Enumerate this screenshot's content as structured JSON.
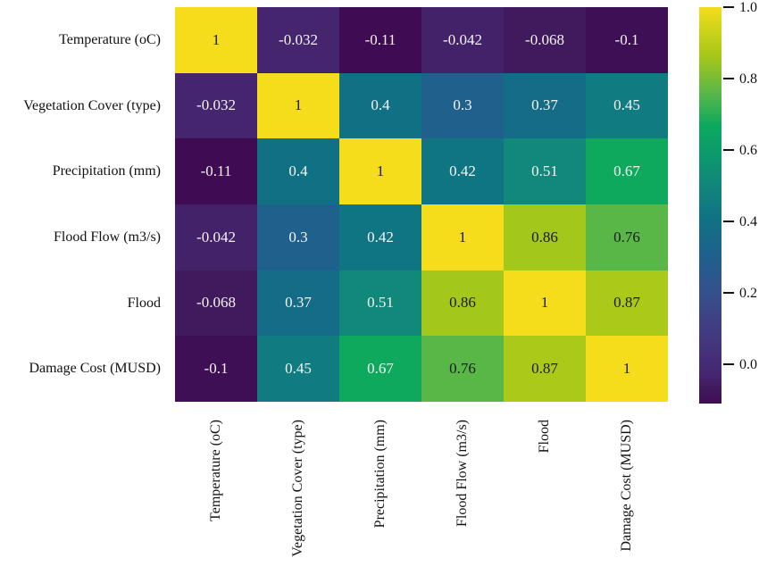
{
  "chart_data": {
    "type": "heatmap",
    "title": "",
    "variables": [
      "Temperature (oC)",
      "Vegetation Cover (type)",
      "Precipitation (mm)",
      "Flood Flow (m3/s)",
      "Flood",
      "Damage Cost (MUSD)"
    ],
    "matrix": [
      [
        1,
        -0.032,
        -0.11,
        -0.042,
        -0.068,
        -0.1
      ],
      [
        -0.032,
        1,
        0.4,
        0.3,
        0.37,
        0.45
      ],
      [
        -0.11,
        0.4,
        1,
        0.42,
        0.51,
        0.67
      ],
      [
        -0.042,
        0.3,
        0.42,
        1,
        0.86,
        0.76
      ],
      [
        -0.068,
        0.37,
        0.51,
        0.86,
        1,
        0.87
      ],
      [
        -0.1,
        0.45,
        0.67,
        0.76,
        0.87,
        1
      ]
    ],
    "vmin": -0.11,
    "vmax": 1.0,
    "grid": false,
    "legend_position": "right",
    "annotation": {
      "light_text_color": "#f5f5f5",
      "dark_text_color": "#1a1a1a",
      "dark_text_min_value": 0.76
    },
    "colormap_stops": [
      [
        0.0,
        "#3f0c54"
      ],
      [
        0.04,
        "#411a5e"
      ],
      [
        0.07,
        "#44256e"
      ],
      [
        0.12,
        "#453078"
      ],
      [
        0.2,
        "#413e83"
      ],
      [
        0.28,
        "#35508b"
      ],
      [
        0.37,
        "#1f608c"
      ],
      [
        0.46,
        "#107185"
      ],
      [
        0.56,
        "#11887a"
      ],
      [
        0.63,
        "#0c9a6c"
      ],
      [
        0.7,
        "#0ba95e"
      ],
      [
        0.78,
        "#56b64a"
      ],
      [
        0.88,
        "#a9c818"
      ],
      [
        0.94,
        "#ccd31a"
      ],
      [
        1.0,
        "#f5dd1c"
      ]
    ],
    "colorbar": {
      "ticks": [
        {
          "label": "1.0",
          "value": 1.0
        },
        {
          "label": "0.8",
          "value": 0.8
        },
        {
          "label": "0.6",
          "value": 0.6
        },
        {
          "label": "0.4",
          "value": 0.4
        },
        {
          "label": "0.2",
          "value": 0.2
        },
        {
          "label": "0.0",
          "value": 0.0
        }
      ]
    }
  }
}
